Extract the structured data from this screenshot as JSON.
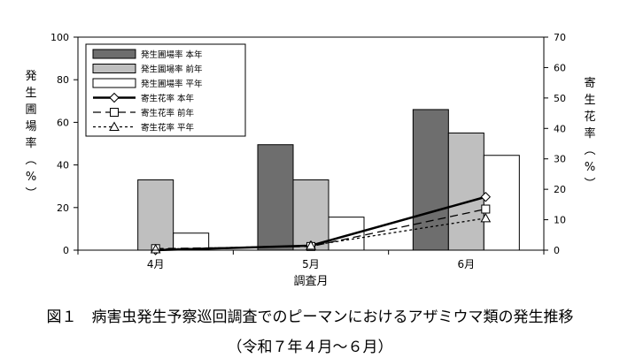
{
  "chart_data": {
    "type": "bar",
    "categories": [
      "4月",
      "5月",
      "6月"
    ],
    "xlabel": "調査月",
    "ylabel_left": "発生圃場率(%)",
    "ylabel_right": "寄生花率(%)",
    "ylim_left": [
      0,
      100
    ],
    "yticks_left": [
      "0",
      "20",
      "40",
      "60",
      "80",
      "100"
    ],
    "ylim_right": [
      0,
      70
    ],
    "yticks_right": [
      "0",
      "10",
      "20",
      "30",
      "40",
      "50",
      "60",
      "70"
    ],
    "bar_series": [
      {
        "name": "発生圃場率 本年",
        "values": [
          null,
          49.5,
          66
        ],
        "color": "#6e6e6e"
      },
      {
        "name": "発生圃場率 前年",
        "values": [
          33,
          33,
          55
        ],
        "color": "#bfbfbf"
      },
      {
        "name": "発生圃場率 平年",
        "values": [
          8,
          15.5,
          44.5
        ],
        "color": "#ffffff"
      }
    ],
    "line_series": [
      {
        "name": "寄生花率 本年",
        "values": [
          0,
          1.5,
          17.5
        ],
        "style": "solid",
        "marker": "diamond",
        "axis": "right"
      },
      {
        "name": "寄生花率 前年",
        "values": [
          0.5,
          1.2,
          13.5
        ],
        "style": "dashed",
        "marker": "square",
        "axis": "right"
      },
      {
        "name": "寄生花率 平年",
        "values": [
          0.3,
          1.5,
          10.5
        ],
        "style": "dotted",
        "marker": "triangle",
        "axis": "right"
      }
    ],
    "legend_position": "top-left"
  },
  "caption": {
    "line1": "図１　病害虫発生予察巡回調査でのピーマンにおけるアザミウマ類の発生推移",
    "line2": "（令和７年４月～６月）"
  }
}
